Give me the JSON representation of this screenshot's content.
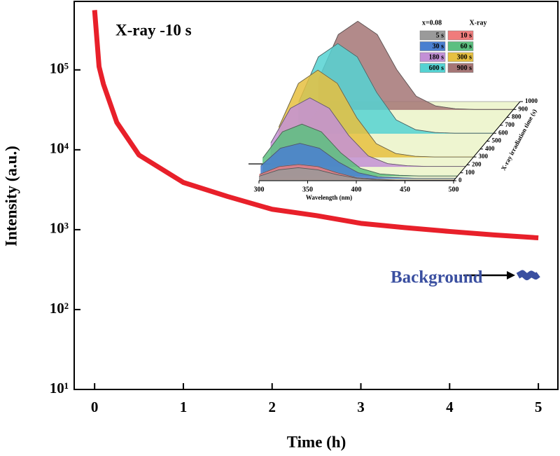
{
  "chart_data": [
    {
      "type": "line",
      "annotation": "X-ray -10 s",
      "xlabel": "Time (h)",
      "ylabel": "Intensity (a.u.)",
      "log_y": true,
      "xlim": [
        -0.23,
        5.22
      ],
      "ylim": [
        10,
        720000
      ],
      "xticks": [
        0,
        1,
        2,
        3,
        4,
        5
      ],
      "yticks": [
        {
          "value": 10,
          "label": "10¹"
        },
        {
          "value": 100,
          "label": "10²"
        },
        {
          "value": 1000,
          "label": "10³"
        },
        {
          "value": 10000,
          "label": "10⁴"
        },
        {
          "value": 100000,
          "label": "10⁵"
        }
      ],
      "series": [
        {
          "color": "#e8202a",
          "x": [
            0,
            0.05,
            0.1,
            0.25,
            0.5,
            1,
            1.5,
            2,
            2.5,
            3,
            3.5,
            4,
            4.5,
            5
          ],
          "values": [
            560000,
            110000,
            66000,
            22000,
            8600,
            3900,
            2600,
            1800,
            1500,
            1200,
            1060,
            950,
            860,
            790
          ]
        },
        {
          "name": "Background",
          "color": "#3a4fa0",
          "x": [
            4.77,
            4.82,
            4.87,
            4.92,
            4.97,
            5.0
          ],
          "values": [
            265,
            285,
            255,
            280,
            260,
            275
          ]
        }
      ]
    },
    {
      "type": "waterfall",
      "annotation": "x=0.08",
      "legend_title": "X-ray",
      "xlabel": "Wavelength (nm)",
      "zlabel": "X-ray irradiation time (s)",
      "xlim": [
        300,
        500
      ],
      "xticks": [
        300,
        350,
        400,
        450,
        500
      ],
      "zlim": [
        0,
        1000
      ],
      "zticks": [
        0,
        100,
        200,
        300,
        400,
        500,
        600,
        700,
        800,
        900,
        1000
      ],
      "x": [
        300,
        320,
        340,
        360,
        380,
        400,
        420,
        440,
        460,
        480,
        500
      ],
      "series": [
        {
          "name": "5 s",
          "z": 5,
          "color": "#9a9a9a",
          "values": [
            6,
            15,
            18,
            15,
            8,
            3,
            1,
            0,
            0,
            0,
            0
          ]
        },
        {
          "name": "10 s",
          "z": 10,
          "color": "#f07c7c",
          "values": [
            8,
            19,
            22,
            19,
            10,
            3,
            1,
            0,
            0,
            0,
            0
          ]
        },
        {
          "name": "30 s",
          "z": 30,
          "color": "#4a7fd0",
          "values": [
            18,
            43,
            50,
            43,
            23,
            8,
            2,
            1,
            0,
            0,
            0
          ]
        },
        {
          "name": "60 s",
          "z": 60,
          "color": "#5cbf80",
          "values": [
            26,
            63,
            74,
            63,
            33,
            11,
            3,
            1,
            0,
            0,
            0
          ]
        },
        {
          "name": "180 s",
          "z": 180,
          "color": "#c390d6",
          "values": [
            34,
            83,
            98,
            83,
            44,
            15,
            4,
            1,
            0,
            0,
            0
          ]
        },
        {
          "name": "300 s",
          "z": 300,
          "color": "#e6c040",
          "values": [
            43,
            105,
            124,
            105,
            56,
            19,
            5,
            1,
            0,
            0,
            0
          ]
        },
        {
          "name": "600 s",
          "z": 600,
          "color": "#55d2d2",
          "values": [
            45,
            109,
            128,
            109,
            58,
            19,
            5,
            1,
            0,
            0,
            0
          ]
        },
        {
          "name": "900 s",
          "z": 900,
          "color": "#a57575",
          "values": [
            44,
            107,
            126,
            107,
            57,
            19,
            5,
            1,
            0,
            0,
            0
          ]
        }
      ]
    }
  ]
}
